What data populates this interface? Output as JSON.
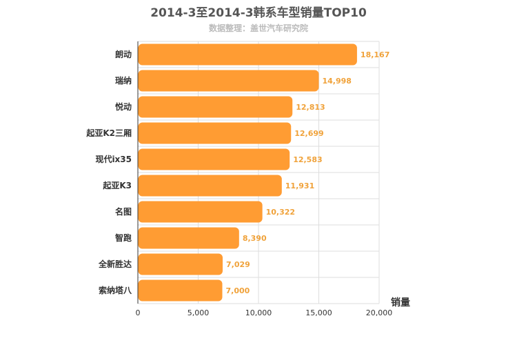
{
  "chart_data": {
    "type": "bar",
    "orientation": "horizontal",
    "title": "2014-3至2014-3韩系车型销量TOP10",
    "subtitle": "数据整理：盖世汽车研究院",
    "categories": [
      "朗动",
      "瑞纳",
      "悦动",
      "起亚K2三厢",
      "现代ix35",
      "起亚K3",
      "名图",
      "智跑",
      "全新胜达",
      "索纳塔八"
    ],
    "values": [
      18167,
      14998,
      12813,
      12699,
      12583,
      11931,
      10322,
      8390,
      7029,
      7000
    ],
    "value_labels": [
      "18,167",
      "14,998",
      "12,813",
      "12,699",
      "12,583",
      "11,931",
      "10,322",
      "8,390",
      "7,029",
      "7,000"
    ],
    "xlabel": "销量",
    "ylabel": "",
    "xlim": [
      0,
      20000
    ],
    "xticks": [
      0,
      5000,
      10000,
      15000,
      20000
    ],
    "xtick_labels": [
      "0",
      "5,000",
      "10,000",
      "15,000",
      "20,000"
    ],
    "grid": true,
    "legend": "none",
    "bar_color": "#ff9c33",
    "value_label_color": "#f0a23a"
  }
}
